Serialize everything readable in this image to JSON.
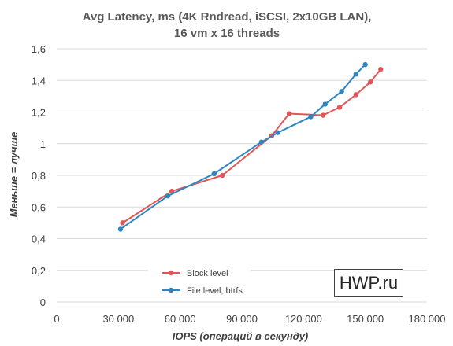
{
  "chart_data": {
    "type": "line",
    "title_lines": [
      "Avg Latency, ms (4K Rndread, iSCSI, 2x10GB LAN),",
      "16 vm x 16 threads"
    ],
    "xlabel": "IOPS (операций в секунду)",
    "ylabel": "Меньше = лучше",
    "xlim": [
      0,
      180000
    ],
    "ylim": [
      0,
      1.6
    ],
    "x_ticks": [
      0,
      30000,
      60000,
      90000,
      120000,
      150000,
      180000
    ],
    "x_tick_labels": [
      "0",
      "30 000",
      "60 000",
      "90 000",
      "120 000",
      "150 000",
      "180 000"
    ],
    "y_ticks": [
      0,
      0.2,
      0.4,
      0.6,
      0.8,
      1.0,
      1.2,
      1.4,
      1.6
    ],
    "y_tick_labels": [
      "0",
      "0,2",
      "0,4",
      "0,6",
      "0,8",
      "1",
      "1,2",
      "1,4",
      "1,6"
    ],
    "grid": "horizontal",
    "legend_position": "bottom-center",
    "series": [
      {
        "name": "Block level",
        "color": "#e15759",
        "x": [
          32000,
          56000,
          80500,
          104500,
          113000,
          129500,
          137500,
          145500,
          152500,
          157500
        ],
        "y": [
          0.5,
          0.7,
          0.8,
          1.05,
          1.19,
          1.18,
          1.23,
          1.31,
          1.39,
          1.47
        ]
      },
      {
        "name": "File level, btrfs",
        "color": "#2e86c1",
        "x": [
          31000,
          54000,
          76500,
          99500,
          107500,
          123500,
          130500,
          138500,
          145500,
          150000
        ],
        "y": [
          0.46,
          0.67,
          0.81,
          1.01,
          1.07,
          1.17,
          1.25,
          1.33,
          1.44,
          1.5
        ]
      }
    ]
  },
  "watermark": "HWP.ru"
}
